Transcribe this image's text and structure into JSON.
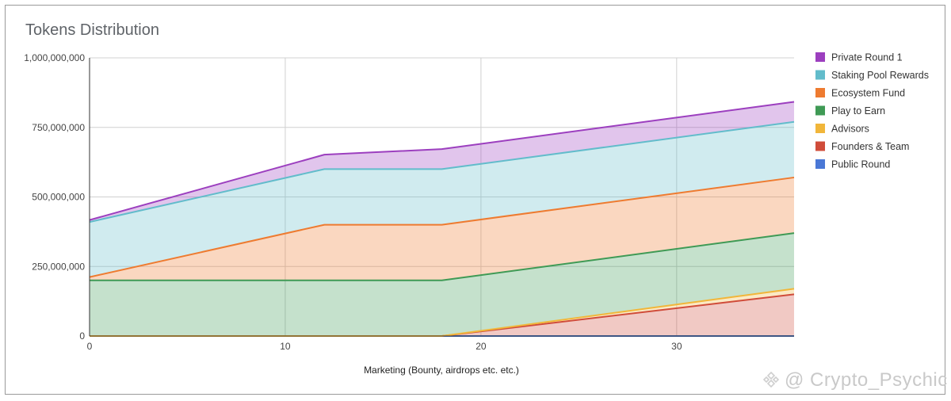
{
  "chart_data": {
    "type": "area",
    "stacked": true,
    "title": "Tokens Distribution",
    "xlabel": "Marketing (Bounty, airdrops etc. etc.)",
    "ylabel": "",
    "xlim": [
      0,
      36
    ],
    "ylim": [
      0,
      1000000000
    ],
    "x_ticks": [
      0,
      10,
      20,
      30
    ],
    "x_tick_labels": [
      "0",
      "10",
      "20",
      "30"
    ],
    "y_ticks": [
      0,
      250000000,
      500000000,
      750000000,
      1000000000
    ],
    "y_tick_labels": [
      "0",
      "250,000,000",
      "500,000,000",
      "750,000,000",
      "1,000,000,000"
    ],
    "grid": true,
    "legend_position": "right",
    "x": [
      0,
      12,
      18,
      36
    ],
    "series": [
      {
        "name": "Public Round",
        "color": "#4a78d6",
        "values": [
          0,
          0,
          0,
          0
        ]
      },
      {
        "name": "Founders & Team",
        "color": "#d04c3a",
        "values": [
          0,
          0,
          0,
          150000000
        ]
      },
      {
        "name": "Advisors",
        "color": "#f1b63a",
        "values": [
          0,
          0,
          0,
          20000000
        ]
      },
      {
        "name": "Play to Earn",
        "color": "#3f9a55",
        "values": [
          200000000,
          200000000,
          200000000,
          200000000
        ]
      },
      {
        "name": "Ecosystem Fund",
        "color": "#ee7b30",
        "values": [
          12000000,
          200000000,
          200000000,
          200000000
        ]
      },
      {
        "name": "Staking Pool Rewards",
        "color": "#62bccb",
        "values": [
          198000000,
          200000000,
          200000000,
          200000000
        ]
      },
      {
        "name": "Private Round 1",
        "color": "#9c3fbf",
        "values": [
          7000000,
          52000000,
          72000000,
          72000000
        ]
      }
    ]
  },
  "watermark": "@ Crypto_Psychic"
}
